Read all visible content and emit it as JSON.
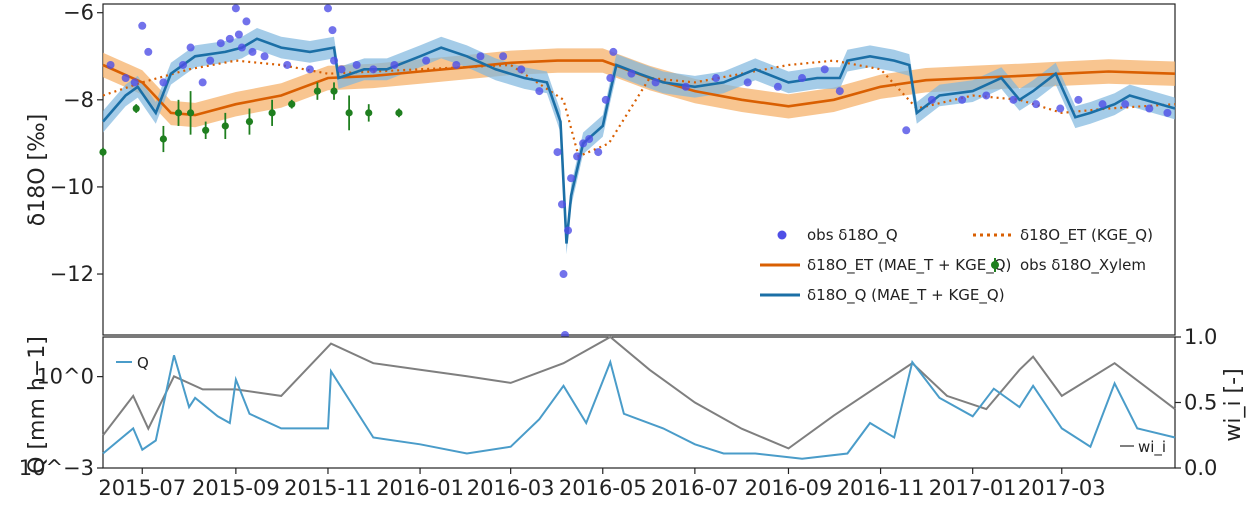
{
  "chart_data": [
    {
      "type": "line",
      "panel": "top",
      "ylabel": "δ18O [‰]",
      "ylim": [
        -13.4,
        -5.8
      ],
      "ytick_labels": [
        "−6",
        "−8",
        "−10",
        "−12"
      ],
      "yticks": [
        -6,
        -8,
        -10,
        -12
      ],
      "xlim": [
        "2015-06-05",
        "2017-05-15"
      ],
      "grid": false,
      "legend_position": "lower-right",
      "legend": [
        {
          "label": "obs δ18O_Q",
          "marker": "circle",
          "color": "#4f4fe6"
        },
        {
          "label": "δ18O_ET (KGE_Q)",
          "marker": "dotted-line",
          "color": "#d95f02"
        },
        {
          "label": "δ18O_ET (MAE_T + KGE_Q)",
          "marker": "line",
          "color": "#d95f02"
        },
        {
          "label": "obs δ18O_Xylem",
          "marker": "errorbar",
          "color": "#1f7f1f"
        },
        {
          "label": "δ18O_Q (MAE_T + KGE_Q)",
          "marker": "line",
          "color": "#1b6fa6"
        }
      ],
      "series": [
        {
          "name": "δ18O_Q (MAE_T + KGE_Q)",
          "color": "#1b6fa6",
          "x": [
            "2015-06-05",
            "2015-06-20",
            "2015-06-28",
            "2015-07-10",
            "2015-07-20",
            "2015-08-05",
            "2015-08-25",
            "2015-09-05",
            "2015-09-15",
            "2015-10-01",
            "2015-10-20",
            "2015-11-05",
            "2015-11-08",
            "2015-11-25",
            "2015-12-10",
            "2016-01-01",
            "2016-01-15",
            "2016-02-01",
            "2016-02-20",
            "2016-03-10",
            "2016-03-25",
            "2016-04-03",
            "2016-04-07",
            "2016-04-10",
            "2016-04-18",
            "2016-05-01",
            "2016-05-06",
            "2016-05-10",
            "2016-05-25",
            "2016-06-10",
            "2016-07-01",
            "2016-07-20",
            "2016-08-10",
            "2016-09-01",
            "2016-09-20",
            "2016-10-05",
            "2016-10-10",
            "2016-10-25",
            "2016-11-10",
            "2016-11-20",
            "2016-11-25",
            "2016-12-10",
            "2017-01-01",
            "2017-01-20",
            "2017-02-01",
            "2017-02-10",
            "2017-02-25",
            "2017-03-10",
            "2017-03-20",
            "2017-04-05",
            "2017-04-15",
            "2017-05-15"
          ],
          "y": [
            -8.5,
            -7.9,
            -7.7,
            -8.3,
            -7.4,
            -7.0,
            -6.9,
            -6.8,
            -6.6,
            -6.8,
            -6.9,
            -6.8,
            -7.5,
            -7.3,
            -7.3,
            -7.0,
            -6.8,
            -7.0,
            -7.3,
            -7.5,
            -7.6,
            -8.5,
            -11.3,
            -10.2,
            -9.0,
            -8.6,
            -7.8,
            -7.2,
            -7.4,
            -7.6,
            -7.7,
            -7.6,
            -7.3,
            -7.6,
            -7.5,
            -7.5,
            -7.1,
            -7.0,
            -7.1,
            -7.2,
            -8.3,
            -7.9,
            -7.8,
            -7.5,
            -8.0,
            -7.8,
            -7.4,
            -8.4,
            -8.3,
            -8.1,
            -7.9,
            -8.2
          ]
        },
        {
          "name": "δ18O_ET (MAE_T + KGE_Q)",
          "color": "#d95f02",
          "x": [
            "2015-06-05",
            "2015-07-01",
            "2015-07-20",
            "2015-08-05",
            "2015-09-01",
            "2015-10-01",
            "2015-11-01",
            "2015-12-01",
            "2016-01-01",
            "2016-02-01",
            "2016-03-01",
            "2016-04-01",
            "2016-05-01",
            "2016-06-01",
            "2016-07-01",
            "2016-08-01",
            "2016-09-01",
            "2016-10-01",
            "2016-11-01",
            "2016-12-01",
            "2017-01-01",
            "2017-02-01",
            "2017-03-01",
            "2017-04-01",
            "2017-05-15"
          ],
          "y": [
            -7.2,
            -7.6,
            -8.3,
            -8.35,
            -8.1,
            -7.9,
            -7.5,
            -7.45,
            -7.35,
            -7.25,
            -7.15,
            -7.1,
            -7.1,
            -7.5,
            -7.8,
            -8.0,
            -8.15,
            -8.0,
            -7.7,
            -7.55,
            -7.5,
            -7.45,
            -7.4,
            -7.35,
            -7.4
          ]
        },
        {
          "name": "δ18O_ET (KGE_Q)",
          "color": "#d95f02",
          "x": [
            "2015-06-05",
            "2015-07-01",
            "2015-08-01",
            "2015-09-01",
            "2015-10-01",
            "2015-11-01",
            "2016-01-01",
            "2016-03-01",
            "2016-04-05",
            "2016-04-15",
            "2016-05-05",
            "2016-06-01",
            "2016-07-01",
            "2016-08-01",
            "2016-09-01",
            "2016-10-01",
            "2016-11-01",
            "2016-11-25",
            "2017-01-01",
            "2017-02-01",
            "2017-03-01",
            "2017-04-01",
            "2017-05-15"
          ],
          "y": [
            -7.9,
            -7.6,
            -7.3,
            -7.1,
            -7.2,
            -7.4,
            -7.3,
            -7.2,
            -8.0,
            -9.3,
            -9.0,
            -7.5,
            -7.6,
            -7.4,
            -7.2,
            -7.1,
            -7.3,
            -8.2,
            -7.9,
            -8.0,
            -8.3,
            -8.2,
            -8.1
          ]
        },
        {
          "name": "obs δ18O_Q",
          "color": "#4f4fe6",
          "x": [
            "2015-06-10",
            "2015-06-20",
            "2015-06-26",
            "2015-07-01",
            "2015-07-05",
            "2015-07-15",
            "2015-07-28",
            "2015-08-02",
            "2015-08-10",
            "2015-08-15",
            "2015-08-22",
            "2015-08-28",
            "2015-09-01",
            "2015-09-03",
            "2015-09-05",
            "2015-09-08",
            "2015-09-12",
            "2015-09-20",
            "2015-10-05",
            "2015-10-20",
            "2015-11-01",
            "2015-11-04",
            "2015-11-05",
            "2015-11-10",
            "2015-11-20",
            "2015-12-01",
            "2015-12-15",
            "2016-01-05",
            "2016-01-25",
            "2016-02-10",
            "2016-02-25",
            "2016-03-08",
            "2016-03-20",
            "2016-04-01",
            "2016-04-04",
            "2016-04-05",
            "2016-04-06",
            "2016-04-08",
            "2016-04-10",
            "2016-04-14",
            "2016-04-18",
            "2016-04-22",
            "2016-04-28",
            "2016-05-03",
            "2016-05-06",
            "2016-05-08",
            "2016-05-20",
            "2016-06-05",
            "2016-06-25",
            "2016-07-15",
            "2016-08-05",
            "2016-08-25",
            "2016-09-10",
            "2016-09-25",
            "2016-10-05",
            "2016-11-18",
            "2016-12-05",
            "2016-12-25",
            "2017-01-10",
            "2017-01-28",
            "2017-02-12",
            "2017-02-28",
            "2017-03-12",
            "2017-03-28",
            "2017-04-12",
            "2017-04-28",
            "2017-05-10"
          ],
          "y": [
            -7.2,
            -7.5,
            -7.6,
            -6.3,
            -6.9,
            -7.6,
            -7.2,
            -6.8,
            -7.6,
            -7.1,
            -6.7,
            -6.6,
            -5.9,
            -6.5,
            -6.8,
            -6.2,
            -6.9,
            -7.0,
            -7.2,
            -7.3,
            -5.9,
            -6.4,
            -7.1,
            -7.3,
            -7.2,
            -7.3,
            -7.2,
            -7.1,
            -7.2,
            -7.0,
            -7.0,
            -7.3,
            -7.8,
            -9.2,
            -10.4,
            -12.0,
            -13.4,
            -11.0,
            -9.8,
            -9.3,
            -9.0,
            -8.9,
            -9.2,
            -8.0,
            -7.5,
            -6.9,
            -7.4,
            -7.6,
            -7.7,
            -7.5,
            -7.6,
            -7.7,
            -7.5,
            -7.3,
            -7.8,
            -8.7,
            -8.0,
            -8.0,
            -7.9,
            -8.0,
            -8.1,
            -8.2,
            -8.0,
            -8.1,
            -8.1,
            -8.2,
            -8.3
          ]
        },
        {
          "name": "obs δ18O_Xylem",
          "color": "#1f7f1f",
          "x": [
            "2015-06-05",
            "2015-06-27",
            "2015-07-15",
            "2015-07-25",
            "2015-08-02",
            "2015-08-12",
            "2015-08-25",
            "2015-09-10",
            "2015-09-25",
            "2015-10-08",
            "2015-10-25",
            "2015-11-05",
            "2015-11-15",
            "2015-11-28",
            "2015-12-18"
          ],
          "y": [
            -9.2,
            -8.2,
            -8.9,
            -8.3,
            -8.3,
            -8.7,
            -8.6,
            -8.5,
            -8.3,
            -8.1,
            -7.8,
            -7.8,
            -8.3,
            -8.3,
            -8.3
          ],
          "err": [
            0.1,
            0.1,
            0.3,
            0.3,
            0.5,
            0.2,
            0.3,
            0.3,
            0.3,
            0.1,
            0.2,
            0.2,
            0.4,
            0.2,
            0.1
          ]
        }
      ]
    },
    {
      "type": "line",
      "panel": "bottom",
      "ylabel": "Q [mm h−1]",
      "ylabel_right": "wi_i [-]",
      "yscale": "log",
      "ylim": [
        0.001,
        20
      ],
      "ytick_labels": [
        "10^0",
        "10^−3"
      ],
      "ylim_right": [
        0.0,
        1.0
      ],
      "ytick_labels_right": [
        "0.0",
        "0.5",
        "1.0"
      ],
      "xticks": [
        "2015-07",
        "2015-09",
        "2015-11",
        "2016-01",
        "2016-03",
        "2016-05",
        "2016-07",
        "2016-09",
        "2016-11",
        "2017-01",
        "2017-03"
      ],
      "legend_position": "top-left / lower-right",
      "series": [
        {
          "name": "Q",
          "color": "#4a9cc9",
          "x": [
            "2015-06-05",
            "2015-06-25",
            "2015-07-01",
            "2015-07-10",
            "2015-07-22",
            "2015-08-01",
            "2015-08-05",
            "2015-08-20",
            "2015-08-28",
            "2015-09-01",
            "2015-09-10",
            "2015-10-01",
            "2015-11-01",
            "2015-11-03",
            "2015-12-01",
            "2016-01-01",
            "2016-02-01",
            "2016-03-01",
            "2016-03-20",
            "2016-04-05",
            "2016-04-20",
            "2016-05-06",
            "2016-05-15",
            "2016-06-10",
            "2016-07-01",
            "2016-07-20",
            "2016-08-10",
            "2016-09-10",
            "2016-10-10",
            "2016-10-25",
            "2016-11-10",
            "2016-11-22",
            "2016-12-10",
            "2017-01-01",
            "2017-01-15",
            "2017-02-01",
            "2017-02-10",
            "2017-03-01",
            "2017-03-20",
            "2017-04-05",
            "2017-04-20",
            "2017-05-15"
          ],
          "y": [
            0.003,
            0.02,
            0.004,
            0.008,
            5.0,
            0.1,
            0.2,
            0.05,
            0.03,
            0.8,
            0.06,
            0.02,
            0.02,
            1.5,
            0.01,
            0.006,
            0.003,
            0.005,
            0.04,
            0.5,
            0.03,
            3.0,
            0.06,
            0.02,
            0.006,
            0.003,
            0.003,
            0.002,
            0.003,
            0.03,
            0.01,
            3.0,
            0.2,
            0.05,
            0.4,
            0.1,
            0.5,
            0.02,
            0.005,
            0.6,
            0.02,
            0.01
          ]
        },
        {
          "name": "wi_i",
          "color": "#7f7f7f",
          "x": [
            "2015-06-05",
            "2015-06-25",
            "2015-07-05",
            "2015-07-22",
            "2015-08-10",
            "2015-09-01",
            "2015-10-01",
            "2015-11-03",
            "2015-12-01",
            "2016-01-01",
            "2016-02-01",
            "2016-03-01",
            "2016-04-05",
            "2016-05-06",
            "2016-06-01",
            "2016-07-01",
            "2016-08-01",
            "2016-09-01",
            "2016-10-01",
            "2016-11-22",
            "2016-12-15",
            "2017-01-10",
            "2017-02-01",
            "2017-02-10",
            "2017-03-01",
            "2017-04-05",
            "2017-05-15"
          ],
          "y": [
            0.25,
            0.55,
            0.3,
            0.7,
            0.6,
            0.6,
            0.55,
            0.95,
            0.8,
            0.75,
            0.7,
            0.65,
            0.8,
            1.0,
            0.75,
            0.5,
            0.3,
            0.15,
            0.4,
            0.8,
            0.55,
            0.45,
            0.75,
            0.85,
            0.55,
            0.8,
            0.45
          ]
        }
      ]
    }
  ]
}
